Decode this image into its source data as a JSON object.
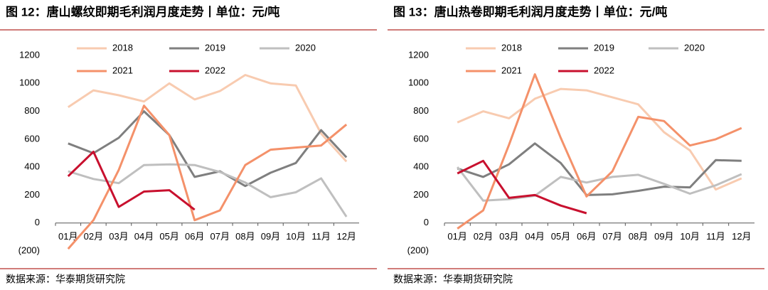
{
  "chart_data": [
    {
      "type": "line",
      "title": "图 12：唐山螺纹即期毛利润月度走势丨单位：元/吨",
      "source": "数据来源：华泰期货研究院",
      "categories": [
        "01月",
        "02月",
        "03月",
        "04月",
        "05月",
        "06月",
        "07月",
        "08月",
        "09月",
        "10月",
        "11月",
        "12月"
      ],
      "ylim": [
        -200,
        1200
      ],
      "yticks": [
        {
          "value": -200,
          "label": "(200)"
        },
        0,
        200,
        400,
        600,
        800,
        1000,
        1200
      ],
      "series": [
        {
          "name": "2018",
          "color": "#f8cbb0",
          "values": [
            830,
            950,
            915,
            870,
            1000,
            885,
            945,
            1060,
            1000,
            985,
            640,
            440
          ]
        },
        {
          "name": "2019",
          "color": "#7f7f7f",
          "values": [
            570,
            500,
            610,
            800,
            630,
            330,
            370,
            265,
            360,
            430,
            665,
            470
          ]
        },
        {
          "name": "2020",
          "color": "#bfbfbf",
          "values": [
            370,
            315,
            285,
            415,
            420,
            415,
            365,
            290,
            185,
            220,
            320,
            45
          ]
        },
        {
          "name": "2021",
          "color": "#f4916a",
          "values": [
            -185,
            20,
            380,
            840,
            630,
            20,
            90,
            415,
            525,
            540,
            555,
            705
          ]
        },
        {
          "name": "2022",
          "color": "#c8102e",
          "values": [
            335,
            510,
            115,
            225,
            235,
            95,
            null,
            null,
            null,
            null,
            null,
            null
          ]
        }
      ]
    },
    {
      "type": "line",
      "title": "图 13：唐山热卷即期毛利润月度走势丨单位：元/吨",
      "source": "数据来源：华泰期货研究院",
      "categories": [
        "01月",
        "02月",
        "03月",
        "04月",
        "05月",
        "06月",
        "07月",
        "08月",
        "09月",
        "10月",
        "11月",
        "12月"
      ],
      "ylim": [
        -200,
        1200
      ],
      "yticks": [
        {
          "value": -200,
          "label": "(200)"
        },
        0,
        200,
        400,
        600,
        800,
        1000,
        1200
      ],
      "series": [
        {
          "name": "2018",
          "color": "#f8cbb0",
          "values": [
            720,
            800,
            750,
            890,
            960,
            950,
            900,
            850,
            650,
            520,
            240,
            320
          ]
        },
        {
          "name": "2019",
          "color": "#7f7f7f",
          "values": [
            390,
            330,
            420,
            570,
            430,
            200,
            205,
            230,
            260,
            255,
            450,
            445
          ]
        },
        {
          "name": "2020",
          "color": "#bfbfbf",
          "values": [
            400,
            160,
            170,
            195,
            330,
            290,
            330,
            345,
            280,
            210,
            270,
            350
          ]
        },
        {
          "name": "2021",
          "color": "#f4916a",
          "values": [
            -40,
            90,
            560,
            1065,
            610,
            190,
            370,
            760,
            730,
            555,
            600,
            680
          ]
        },
        {
          "name": "2022",
          "color": "#c8102e",
          "values": [
            355,
            445,
            180,
            200,
            125,
            70,
            null,
            null,
            null,
            null,
            null,
            null
          ]
        }
      ]
    }
  ]
}
